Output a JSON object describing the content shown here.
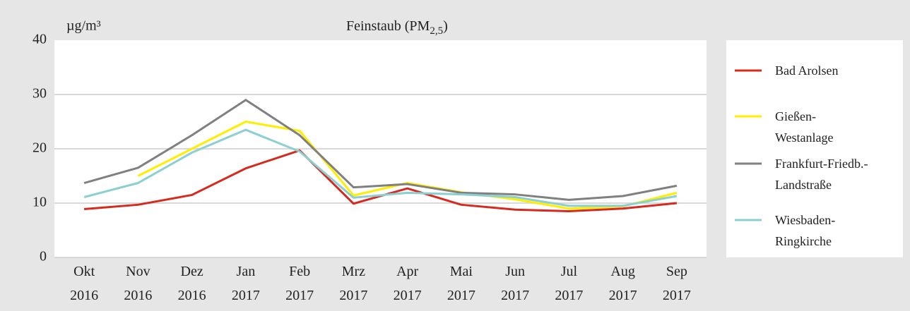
{
  "chart_data": {
    "type": "line",
    "title": "Feinstaub (PM",
    "title_subscript": "2,5",
    "title_end": ")",
    "y_label": "µg/m³",
    "categories": [
      "Okt 2016",
      "Nov 2016",
      "Dez 2016",
      "Jan 2017",
      "Feb 2017",
      "Mrz 2017",
      "Apr 2017",
      "Mai 2017",
      "Jun 2017",
      "Jul 2017",
      "Aug 2017",
      "Sep 2017"
    ],
    "series": [
      {
        "name": "Bad Arolsen",
        "color": "#d62a1e",
        "values": [
          8.9,
          9.7,
          11.5,
          16.4,
          19.7,
          9.9,
          12.7,
          9.7,
          8.8,
          8.5,
          9.0,
          10.0
        ]
      },
      {
        "name": "Gießen-Westanlage",
        "color": "#ffee00",
        "values": [
          null,
          15.0,
          20.0,
          25.0,
          23.3,
          11.4,
          13.7,
          12.0,
          10.7,
          9.0,
          9.4,
          11.9
        ]
      },
      {
        "name": "Frankfurt-Friedb.-Landstraße",
        "color": "#808080",
        "values": [
          13.7,
          16.5,
          22.5,
          29.0,
          22.5,
          12.9,
          13.5,
          11.9,
          11.6,
          10.6,
          11.3,
          13.2
        ]
      },
      {
        "name": "Wiesbaden-Ringkirche",
        "color": "#8ccfd0",
        "values": [
          11.1,
          13.7,
          19.3,
          23.5,
          19.5,
          11.0,
          11.9,
          11.6,
          11.1,
          9.5,
          9.5,
          11.3
        ]
      }
    ],
    "ylim": [
      0,
      40
    ],
    "yticks": [
      0,
      10,
      20,
      30,
      40
    ],
    "grid": true,
    "legend": "right"
  }
}
